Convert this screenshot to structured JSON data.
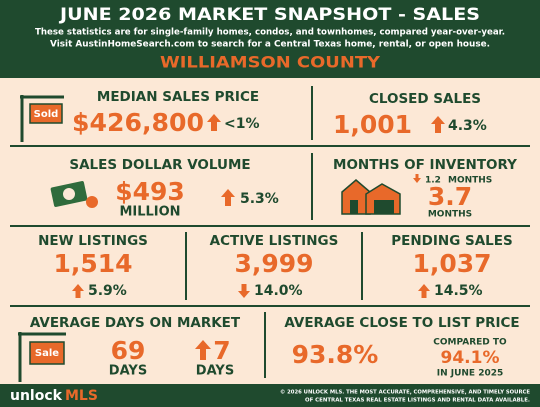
{
  "header": {
    "title": "JUNE 2026 MARKET SNAPSHOT - SALES",
    "subtitle_lines": [
      "These statistics are for single-family homes, condos, and townhomes, compared year-over-year.",
      "Visit AustinHomeSearch.com to search for a Central Texas home, rental, or open house."
    ],
    "region": "WILLIAMSON COUNTY"
  },
  "metrics": {
    "median_sales_price": {
      "label": "MEDIAN SALES PRICE",
      "value": "$426,800",
      "change": "<1%",
      "sign_text": "Sold"
    },
    "closed_sales": {
      "label": "CLOSED SALES",
      "value": "1,001",
      "change": "4.3%"
    },
    "sales_dollar_volume": {
      "label": "SALES DOLLAR VOLUME",
      "value": "$493",
      "unit": "MILLION",
      "change": "5.3%"
    },
    "months_of_inventory": {
      "label": "MONTHS OF INVENTORY",
      "change": "1.2",
      "change_unit": "MONTHS",
      "value": "3.7",
      "unit": "MONTHS"
    },
    "new_listings": {
      "label": "NEW LISTINGS",
      "value": "1,514",
      "change": "5.9%"
    },
    "active_listings": {
      "label": "ACTIVE LISTINGS",
      "value": "3,999",
      "change": "14.0%"
    },
    "pending_sales": {
      "label": "PENDING SALES",
      "value": "1,037",
      "change": "14.5%"
    },
    "average_days_on_market": {
      "label": "AVERAGE DAYS ON MARKET",
      "value": "69",
      "unit": "DAYS",
      "change": "7",
      "change_unit": "DAYS",
      "sign_text": "Sale"
    },
    "average_close_to_list_price": {
      "label": "AVERAGE CLOSE TO LIST PRICE",
      "value": "93.8%",
      "comparison_label": "COMPARED TO",
      "comparison_value": "94.1%",
      "comparison_period": "IN JUNE 2025"
    }
  },
  "footer": {
    "logo": [
      "unlock",
      "MLS"
    ],
    "copyright_lines": [
      "© 2026 UNLOCK MLS. THE MOST ACCURATE, COMPREHENSIVE, AND TIMELY SOURCE",
      "OF CENTRAL TEXAS REAL ESTATE LISTINGS AND RENTAL DATA AVAILABLE."
    ]
  }
}
